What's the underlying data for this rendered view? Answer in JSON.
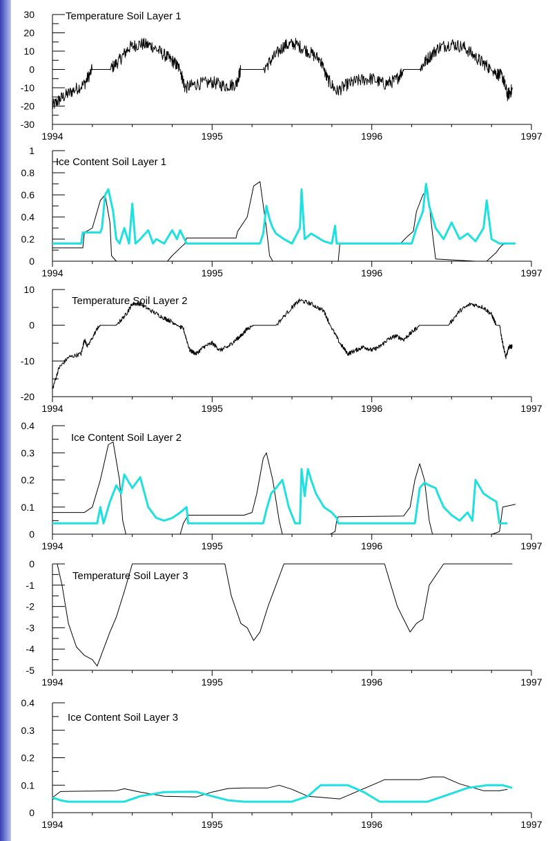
{
  "colors": {
    "black_series": "#000000",
    "cyan_series": "#1fe0e0",
    "sidebar_strip": "#5058c8"
  },
  "chart_data": [
    {
      "type": "line",
      "title": "Temperature Soil Layer 1",
      "xlim": [
        1994,
        1997
      ],
      "xticks": [
        "1994",
        "1995",
        "1996",
        "1997"
      ],
      "ylim": [
        -30,
        30
      ],
      "yticks": [
        "-30",
        "-20",
        "-10",
        "0",
        "10",
        "20",
        "30"
      ],
      "series": [
        {
          "color": "black",
          "width": 1,
          "noise": 3.5,
          "x": [
            1994.0,
            1994.05,
            1994.12,
            1994.2,
            1994.25,
            1994.3,
            1994.36,
            1994.42,
            1994.48,
            1994.55,
            1994.62,
            1994.7,
            1994.76,
            1994.8,
            1994.83,
            1994.9,
            1995.0,
            1995.08,
            1995.15,
            1995.18,
            1995.25,
            1995.32,
            1995.38,
            1995.45,
            1995.52,
            1995.6,
            1995.68,
            1995.72,
            1995.78,
            1995.85,
            1995.92,
            1996.0,
            1996.08,
            1996.15,
            1996.2,
            1996.25,
            1996.3,
            1996.35,
            1996.42,
            1996.5,
            1996.58,
            1996.66,
            1996.72,
            1996.78,
            1996.82,
            1996.85,
            1996.88
          ],
          "y": [
            -20,
            -16,
            -12,
            -8,
            0,
            0,
            0,
            5,
            12,
            14,
            13,
            8,
            4,
            0,
            -10,
            -8,
            -7,
            -9,
            -8,
            0,
            0,
            0,
            6,
            13,
            14,
            10,
            5,
            -5,
            -12,
            -8,
            -6,
            -5,
            -8,
            -6,
            0,
            0,
            0,
            6,
            12,
            14,
            12,
            6,
            2,
            -2,
            -4,
            -14,
            -11
          ]
        }
      ]
    },
    {
      "type": "line",
      "title": "Ice Content Soil Layer 1",
      "xlim": [
        1994,
        1997
      ],
      "xticks": [
        "1994",
        "1995",
        "1996",
        "1997"
      ],
      "ylim": [
        0,
        1
      ],
      "yticks": [
        "0",
        "0.2",
        "0.4",
        "0.6",
        "0.8",
        "1"
      ],
      "series": [
        {
          "color": "black",
          "width": 1,
          "x": [
            1994.0,
            1994.19,
            1994.2,
            1994.25,
            1994.3,
            1994.33,
            1994.36,
            1994.37,
            1994.4,
            1994.72,
            1994.75,
            1994.8,
            1994.83,
            1994.84,
            1995.0,
            1995.1,
            1995.15,
            1995.16,
            1995.22,
            1995.26,
            1995.3,
            1995.34,
            1995.36,
            1995.38,
            1995.42,
            1995.76,
            1995.79,
            1995.8,
            1996.0,
            1996.18,
            1996.22,
            1996.26,
            1996.28,
            1996.32,
            1996.35,
            1996.38,
            1996.4,
            1996.65,
            1996.72,
            1996.78,
            1996.8,
            1996.82,
            1996.85
          ],
          "y": [
            0.12,
            0.12,
            0.26,
            0.3,
            0.55,
            0.6,
            0.35,
            0.05,
            0.0,
            0.0,
            0.05,
            0.12,
            0.16,
            0.21,
            0.21,
            0.21,
            0.21,
            0.27,
            0.4,
            0.68,
            0.72,
            0.3,
            0.05,
            0.0,
            0.0,
            0.0,
            0.0,
            0.16,
            0.16,
            0.16,
            0.22,
            0.27,
            0.45,
            0.6,
            0.65,
            0.25,
            0.02,
            0.0,
            0.0,
            0.08,
            0.12,
            0.15,
            0.16
          ]
        },
        {
          "color": "cyan",
          "width": 3,
          "x": [
            1994.0,
            1994.18,
            1994.19,
            1994.3,
            1994.31,
            1994.33,
            1994.35,
            1994.38,
            1994.4,
            1994.42,
            1994.45,
            1994.48,
            1994.5,
            1994.52,
            1994.55,
            1994.6,
            1994.63,
            1994.65,
            1994.7,
            1994.75,
            1994.78,
            1994.8,
            1994.84,
            1994.85,
            1995.0,
            1995.3,
            1995.32,
            1995.34,
            1995.36,
            1995.38,
            1995.4,
            1995.45,
            1995.5,
            1995.55,
            1995.56,
            1995.58,
            1995.62,
            1995.7,
            1995.75,
            1995.77,
            1995.78,
            1996.0,
            1996.25,
            1996.28,
            1996.32,
            1996.34,
            1996.36,
            1996.4,
            1996.45,
            1996.5,
            1996.55,
            1996.6,
            1996.65,
            1996.7,
            1996.72,
            1996.75,
            1996.8,
            1996.9
          ],
          "y": [
            0.16,
            0.16,
            0.26,
            0.26,
            0.3,
            0.6,
            0.65,
            0.45,
            0.2,
            0.16,
            0.3,
            0.16,
            0.52,
            0.16,
            0.2,
            0.28,
            0.16,
            0.2,
            0.16,
            0.28,
            0.2,
            0.28,
            0.16,
            0.16,
            0.16,
            0.16,
            0.25,
            0.5,
            0.38,
            0.3,
            0.25,
            0.2,
            0.16,
            0.3,
            0.65,
            0.2,
            0.25,
            0.18,
            0.16,
            0.32,
            0.16,
            0.16,
            0.16,
            0.3,
            0.45,
            0.7,
            0.5,
            0.3,
            0.2,
            0.35,
            0.2,
            0.25,
            0.18,
            0.3,
            0.55,
            0.2,
            0.16,
            0.16
          ]
        }
      ]
    },
    {
      "type": "line",
      "title": "Temperature Soil Layer 2",
      "xlim": [
        1994,
        1997
      ],
      "xticks": [
        "1994",
        "1995",
        "1996",
        "1997"
      ],
      "ylim": [
        -20,
        10
      ],
      "yticks": [
        "-20",
        "-10",
        "0",
        "10"
      ],
      "series": [
        {
          "color": "black",
          "width": 1,
          "noise": 0.6,
          "x": [
            1994.0,
            1994.04,
            1994.1,
            1994.18,
            1994.2,
            1994.22,
            1994.28,
            1994.3,
            1994.4,
            1994.46,
            1994.5,
            1994.55,
            1994.62,
            1994.7,
            1994.75,
            1994.78,
            1994.82,
            1994.86,
            1994.9,
            1994.95,
            1995.0,
            1995.05,
            1995.1,
            1995.15,
            1995.18,
            1995.22,
            1995.26,
            1995.32,
            1995.4,
            1995.5,
            1995.55,
            1995.62,
            1995.7,
            1995.74,
            1995.8,
            1995.85,
            1995.9,
            1995.95,
            1996.0,
            1996.05,
            1996.1,
            1996.15,
            1996.2,
            1996.25,
            1996.3,
            1996.4,
            1996.48,
            1996.55,
            1996.62,
            1996.7,
            1996.75,
            1996.78,
            1996.8,
            1996.82,
            1996.84,
            1996.86,
            1996.88
          ],
          "y": [
            -18,
            -12,
            -9,
            -8,
            -4,
            -6,
            -1,
            0,
            0,
            3,
            6,
            6,
            4,
            2,
            1,
            0,
            -1,
            -7,
            -8,
            -6,
            -5,
            -7,
            -6,
            -4,
            -3,
            -1,
            0,
            0,
            0,
            5,
            7,
            6,
            4,
            0,
            -5,
            -8,
            -7,
            -6,
            -7,
            -6,
            -4,
            -3,
            -4,
            -2,
            0,
            0,
            0,
            4,
            6,
            5,
            3,
            0,
            0,
            -5,
            -9,
            -6,
            -6
          ]
        }
      ]
    },
    {
      "type": "line",
      "title": "Ice Content Soil Layer 2",
      "xlim": [
        1994,
        1997
      ],
      "xticks": [
        "1994",
        "1995",
        "1996",
        "1997"
      ],
      "ylim": [
        0,
        0.4
      ],
      "yticks": [
        "0",
        "0.1",
        "0.2",
        "0.3",
        "0.4"
      ],
      "series": [
        {
          "color": "black",
          "width": 1,
          "x": [
            1994.0,
            1994.2,
            1994.25,
            1994.3,
            1994.35,
            1994.38,
            1994.42,
            1994.44,
            1994.46,
            1994.75,
            1994.8,
            1994.82,
            1994.85,
            1995.2,
            1995.25,
            1995.28,
            1995.32,
            1995.34,
            1995.38,
            1995.42,
            1995.44,
            1995.5,
            1995.74,
            1995.77,
            1995.78,
            1995.79,
            1996.2,
            1996.24,
            1996.27,
            1996.3,
            1996.33,
            1996.36,
            1996.38,
            1996.4,
            1996.75,
            1996.78,
            1996.8,
            1996.82,
            1996.9
          ],
          "y": [
            0.08,
            0.08,
            0.1,
            0.2,
            0.33,
            0.34,
            0.2,
            0.05,
            0.0,
            0.0,
            0.0,
            0.04,
            0.07,
            0.07,
            0.08,
            0.15,
            0.28,
            0.3,
            0.2,
            0.05,
            0.0,
            0.0,
            0.0,
            0.01,
            0.05,
            0.064,
            0.067,
            0.1,
            0.2,
            0.26,
            0.2,
            0.05,
            0.0,
            0.0,
            0.0,
            0.005,
            0.01,
            0.1,
            0.11
          ]
        },
        {
          "color": "cyan",
          "width": 3,
          "x": [
            1994.0,
            1994.28,
            1994.3,
            1994.32,
            1994.33,
            1994.36,
            1994.4,
            1994.43,
            1994.45,
            1994.5,
            1994.55,
            1994.6,
            1994.65,
            1994.7,
            1994.75,
            1994.8,
            1994.84,
            1994.85,
            1995.0,
            1995.32,
            1995.34,
            1995.37,
            1995.4,
            1995.44,
            1995.48,
            1995.52,
            1995.55,
            1995.56,
            1995.58,
            1995.6,
            1995.62,
            1995.65,
            1995.7,
            1995.75,
            1995.78,
            1995.79,
            1996.0,
            1996.27,
            1996.3,
            1996.33,
            1996.36,
            1996.4,
            1996.42,
            1996.45,
            1996.5,
            1996.55,
            1996.6,
            1996.63,
            1996.65,
            1996.7,
            1996.75,
            1996.78,
            1996.8,
            1996.85
          ],
          "y": [
            0.04,
            0.04,
            0.1,
            0.04,
            0.06,
            0.12,
            0.18,
            0.15,
            0.22,
            0.17,
            0.21,
            0.1,
            0.06,
            0.05,
            0.06,
            0.08,
            0.1,
            0.04,
            0.04,
            0.04,
            0.09,
            0.15,
            0.17,
            0.2,
            0.1,
            0.04,
            0.04,
            0.24,
            0.14,
            0.24,
            0.2,
            0.15,
            0.1,
            0.08,
            0.06,
            0.04,
            0.04,
            0.04,
            0.17,
            0.19,
            0.18,
            0.17,
            0.14,
            0.1,
            0.07,
            0.05,
            0.08,
            0.05,
            0.2,
            0.15,
            0.13,
            0.12,
            0.04,
            0.04
          ]
        }
      ]
    },
    {
      "type": "line",
      "title": "Temperature Soil Layer 3",
      "xlim": [
        1994,
        1997
      ],
      "xticks": [
        "1994",
        "1995",
        "1996",
        "1997"
      ],
      "ylim": [
        -5,
        0
      ],
      "yticks": [
        "-5",
        "-4",
        "-3",
        "-2",
        "-1",
        "0"
      ],
      "series": [
        {
          "color": "black",
          "width": 1,
          "x": [
            1994.0,
            1994.03,
            1994.06,
            1994.1,
            1994.15,
            1994.2,
            1994.25,
            1994.28,
            1994.32,
            1994.36,
            1994.4,
            1994.45,
            1994.5,
            1995.0,
            1995.08,
            1995.12,
            1995.18,
            1995.22,
            1995.26,
            1995.3,
            1995.35,
            1995.4,
            1995.45,
            1996.0,
            1996.08,
            1996.12,
            1996.16,
            1996.2,
            1996.24,
            1996.28,
            1996.32,
            1996.36,
            1996.45,
            1996.88
          ],
          "y": [
            0,
            0,
            -1,
            -2.8,
            -3.9,
            -4.3,
            -4.5,
            -4.8,
            -4.0,
            -3.2,
            -2.5,
            -1.3,
            0,
            0,
            0,
            -1.5,
            -2.8,
            -3.0,
            -3.6,
            -3.2,
            -2.0,
            -1.0,
            0,
            0,
            0,
            -1.0,
            -2.0,
            -2.6,
            -3.2,
            -2.8,
            -2.6,
            -1.0,
            0,
            0
          ]
        }
      ]
    },
    {
      "type": "line",
      "title": "Ice Content Soil Layer 3",
      "xlim": [
        1994,
        1997
      ],
      "xticks": [
        "1994",
        "1995",
        "1996",
        "1997"
      ],
      "ylim": [
        0,
        0.4
      ],
      "yticks": [
        "0",
        "0.1",
        "0.2",
        "0.3",
        "0.4"
      ],
      "series": [
        {
          "color": "black",
          "width": 1,
          "x": [
            1994.0,
            1994.05,
            1994.4,
            1994.45,
            1994.55,
            1994.7,
            1994.9,
            1995.0,
            1995.1,
            1995.2,
            1995.35,
            1995.42,
            1995.5,
            1995.6,
            1995.8,
            1995.9,
            1996.0,
            1996.08,
            1996.3,
            1996.38,
            1996.45,
            1996.55,
            1996.7,
            1996.8,
            1996.85
          ],
          "y": [
            0.055,
            0.077,
            0.08,
            0.087,
            0.075,
            0.06,
            0.057,
            0.075,
            0.088,
            0.09,
            0.09,
            0.1,
            0.085,
            0.06,
            0.05,
            0.075,
            0.1,
            0.12,
            0.12,
            0.13,
            0.13,
            0.105,
            0.08,
            0.08,
            0.085
          ]
        },
        {
          "color": "cyan",
          "width": 3,
          "x": [
            1994.0,
            1994.05,
            1994.1,
            1994.45,
            1994.55,
            1994.7,
            1994.9,
            1995.0,
            1995.1,
            1995.2,
            1995.5,
            1995.6,
            1995.68,
            1995.85,
            1995.95,
            1996.05,
            1996.35,
            1996.45,
            1996.6,
            1996.72,
            1996.82,
            1996.88
          ],
          "y": [
            0.055,
            0.045,
            0.04,
            0.04,
            0.06,
            0.075,
            0.076,
            0.06,
            0.045,
            0.04,
            0.04,
            0.06,
            0.1,
            0.1,
            0.075,
            0.04,
            0.04,
            0.06,
            0.09,
            0.1,
            0.1,
            0.09
          ]
        }
      ]
    }
  ]
}
